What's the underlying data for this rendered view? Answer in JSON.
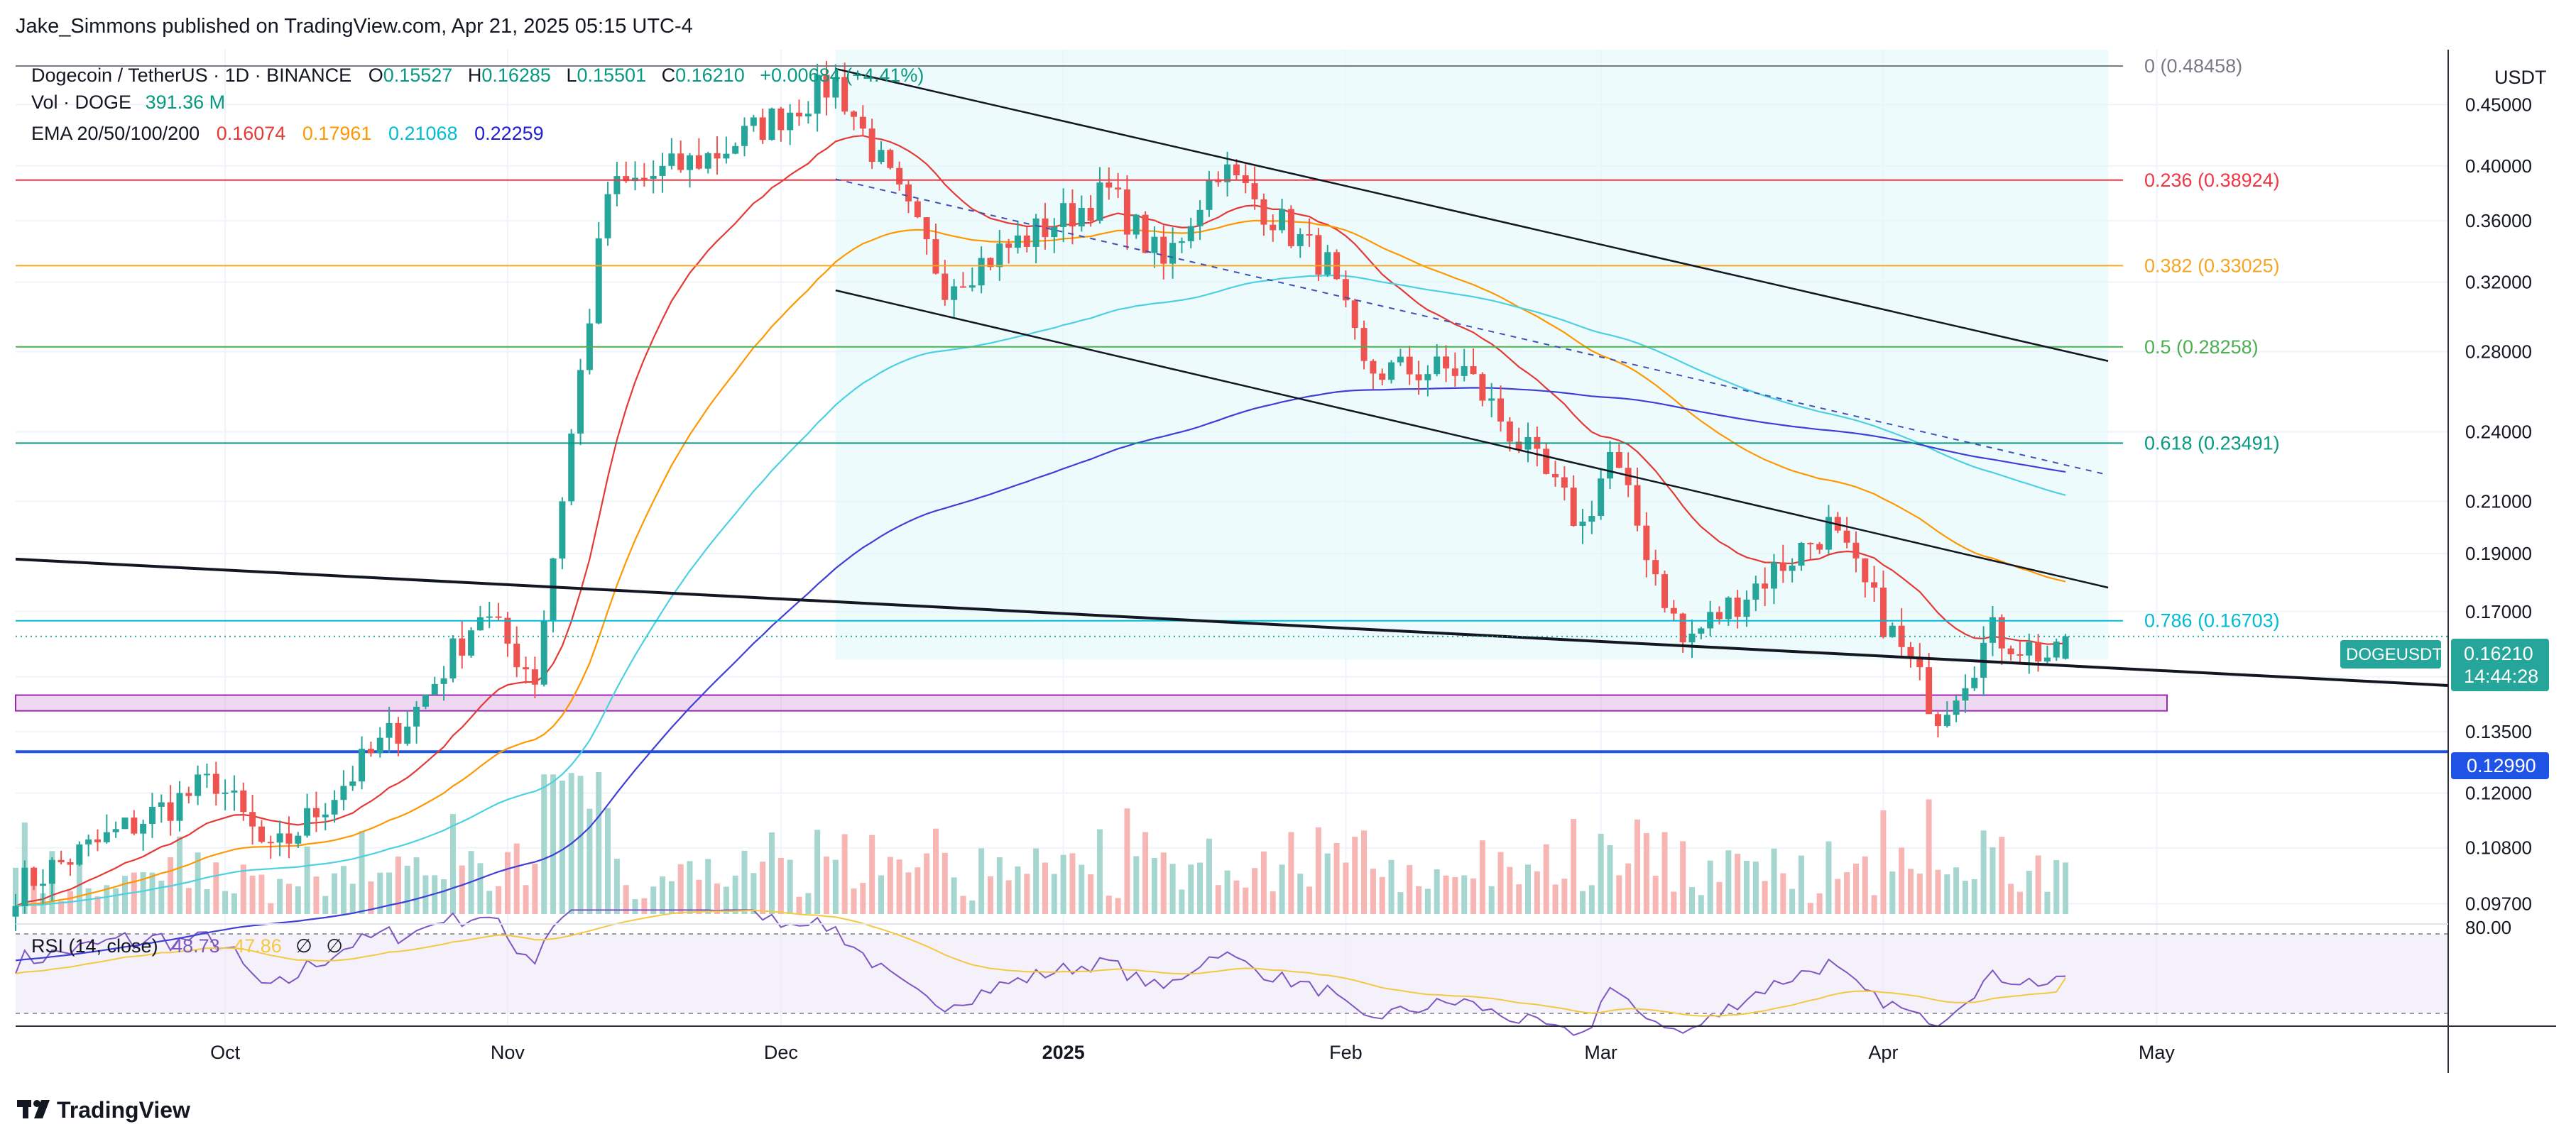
{
  "header": {
    "publisher": "Jake_Simmons published on TradingView.com, Apr 21, 2025 05:15 UTC-4"
  },
  "legend": {
    "symbol": "Dogecoin / TetherUS · 1D · BINANCE",
    "o_label": "O",
    "o_value": "0.15527",
    "h_label": "H",
    "h_value": "0.16285",
    "l_label": "L",
    "l_value": "0.15501",
    "c_label": "C",
    "c_value": "0.16210",
    "change": "+0.00684 (+4.41%)",
    "vol_label": "Vol · DOGE",
    "vol_value": "391.36 M",
    "ema_label": "EMA 20/50/100/200",
    "ema20": "0.16074",
    "ema50": "0.17961",
    "ema100": "0.21068",
    "ema200": "0.22259"
  },
  "rsi": {
    "label": "RSI (14, close)",
    "value": "48.73",
    "value2": "47.86",
    "na1": "∅",
    "na2": "∅"
  },
  "price_axis": {
    "currency": "USDT",
    "rsi_tick": "80.00"
  },
  "last_price": {
    "symbol": "DOGEUSDT",
    "price": "0.16210",
    "countdown": "14:44:28"
  },
  "support_tag": "0.12990",
  "footer": {
    "brand": "TradingView"
  },
  "colors": {
    "up": "#26a69a",
    "down": "#ef5350",
    "ema20": "#e53935",
    "ema50": "#ff9800",
    "ema100": "#4dd0e1",
    "ema200": "#3f3fd6",
    "fib0": "#787b86",
    "fib236": "#f23645",
    "fib382": "#f5a623",
    "fib5": "#4caf50",
    "fib618": "#089981",
    "fib786": "#00bcd4",
    "support": "#1e53e5",
    "zone": "#ce93d8"
  },
  "chart_data": {
    "type": "candlestick",
    "symbol": "DOGEUSDT",
    "interval": "1D",
    "y_scale": "log",
    "y_ticks": [
      "0.45000",
      "0.40000",
      "0.36000",
      "0.32000",
      "0.28000",
      "0.24000",
      "0.21000",
      "0.19000",
      "0.17000",
      "0.15000",
      "0.13500",
      "0.12000",
      "0.10800",
      "0.09700"
    ],
    "x_ticks": [
      {
        "label": "Oct",
        "date": "2024-10-01"
      },
      {
        "label": "Nov",
        "date": "2024-11-01"
      },
      {
        "label": "Dec",
        "date": "2024-12-01"
      },
      {
        "label": "2025",
        "date": "2025-01-01"
      },
      {
        "label": "Feb",
        "date": "2025-02-01"
      },
      {
        "label": "Mar",
        "date": "2025-03-01"
      },
      {
        "label": "Apr",
        "date": "2025-04-01"
      },
      {
        "label": "May",
        "date": "2025-05-01"
      }
    ],
    "x_range": [
      "2024-09-08",
      "2025-06-02"
    ],
    "y_range": [
      0.0955,
      0.5
    ],
    "fib_levels": [
      {
        "label": "0 (0.48458)",
        "value": 0.48458
      },
      {
        "label": "0.236 (0.38924)",
        "value": 0.38924
      },
      {
        "label": "0.382 (0.33025)",
        "value": 0.33025
      },
      {
        "label": "0.5 (0.28258)",
        "value": 0.28258
      },
      {
        "label": "0.618 (0.23491)",
        "value": 0.23491
      },
      {
        "label": "0.786 (0.16703)",
        "value": 0.16703
      }
    ],
    "support_level": 0.1299,
    "demand_zone": [
      0.1405,
      0.1448
    ],
    "channel": {
      "upper": [
        {
          "date": "2024-12-07",
          "value": 0.482
        },
        {
          "date": "2025-04-21",
          "value": 0.275
        }
      ],
      "lower": [
        {
          "date": "2024-12-07",
          "value": 0.315
        },
        {
          "date": "2025-04-21",
          "value": 0.178
        }
      ],
      "mid": [
        {
          "date": "2024-12-07",
          "value": 0.39
        },
        {
          "date": "2025-04-21",
          "value": 0.221
        }
      ]
    },
    "trendline": [
      {
        "date": "2024-09-08",
        "value": 0.188
      },
      {
        "date": "2025-06-02",
        "value": 0.1475
      }
    ],
    "pivots": [
      {
        "date": "2024-09-08",
        "value": 0.1
      },
      {
        "date": "2024-09-30",
        "value": 0.123
      },
      {
        "date": "2024-10-06",
        "value": 0.106
      },
      {
        "date": "2024-10-22",
        "value": 0.141
      },
      {
        "date": "2024-10-29",
        "value": 0.17
      },
      {
        "date": "2024-11-04",
        "value": 0.15
      },
      {
        "date": "2024-11-12",
        "value": 0.38
      },
      {
        "date": "2024-11-24",
        "value": 0.41
      },
      {
        "date": "2024-12-07",
        "value": 0.47
      },
      {
        "date": "2024-12-19",
        "value": 0.32
      },
      {
        "date": "2025-01-06",
        "value": 0.38
      },
      {
        "date": "2025-01-12",
        "value": 0.33
      },
      {
        "date": "2025-01-18",
        "value": 0.4
      },
      {
        "date": "2025-01-30",
        "value": 0.33
      },
      {
        "date": "2025-02-03",
        "value": 0.27
      },
      {
        "date": "2025-02-14",
        "value": 0.27
      },
      {
        "date": "2025-02-27",
        "value": 0.2
      },
      {
        "date": "2025-03-02",
        "value": 0.23
      },
      {
        "date": "2025-03-10",
        "value": 0.16
      },
      {
        "date": "2025-03-26",
        "value": 0.2
      },
      {
        "date": "2025-04-07",
        "value": 0.14
      },
      {
        "date": "2025-04-13",
        "value": 0.163
      },
      {
        "date": "2025-04-20",
        "value": 0.155
      },
      {
        "date": "2025-04-21",
        "value": 0.1621
      }
    ],
    "last_candle": {
      "date": "2025-04-21",
      "open": 0.15527,
      "high": 0.16285,
      "low": 0.15501,
      "close": 0.1621
    },
    "ema_last": {
      "ema20": 0.16074,
      "ema50": 0.17961,
      "ema100": 0.21068,
      "ema200": 0.22259
    },
    "volume_last": "391.36 M",
    "rsi_last": 48.73,
    "rsi_ma_last": 47.86
  }
}
